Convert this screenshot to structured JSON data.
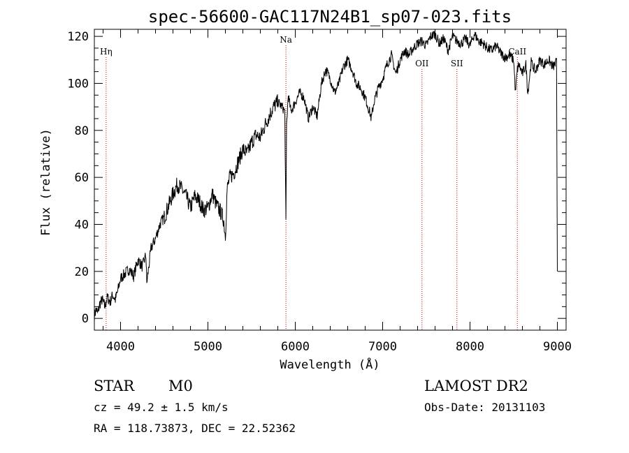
{
  "chart_data": {
    "type": "line",
    "title": "spec-56600-GAC117N24B1_sp07-023.fits",
    "xlabel": "Wavelength (Å)",
    "ylabel": "Flux (relative)",
    "xlim": [
      3700,
      9100
    ],
    "ylim": [
      -5,
      123
    ],
    "xticks": [
      4000,
      5000,
      6000,
      7000,
      8000,
      9000
    ],
    "yticks": [
      0,
      20,
      40,
      60,
      80,
      100,
      120
    ],
    "grid": false,
    "line_color": "#000000",
    "marker_color": "#c00000",
    "series": [
      {
        "x": [
          3700,
          3720,
          3740,
          3760,
          3790,
          3820,
          3850,
          3880,
          3910,
          3940,
          3970,
          4000,
          4050,
          4100,
          4150,
          4200,
          4250,
          4290,
          4300,
          4350,
          4400,
          4450,
          4500,
          4550,
          4600,
          4650,
          4700,
          4750,
          4800,
          4850,
          4900,
          4950,
          5000,
          5050,
          5100,
          5150,
          5180,
          5200,
          5220,
          5250,
          5300,
          5350,
          5400,
          5450,
          5500,
          5550,
          5600,
          5650,
          5700,
          5750,
          5800,
          5850,
          5880,
          5893,
          5900,
          5920,
          5950,
          6000,
          6050,
          6100,
          6150,
          6200,
          6250,
          6300,
          6350,
          6400,
          6450,
          6500,
          6550,
          6600,
          6650,
          6700,
          6750,
          6800,
          6850,
          6870,
          6900,
          6950,
          7000,
          7050,
          7100,
          7150,
          7200,
          7250,
          7300,
          7350,
          7400,
          7450,
          7500,
          7550,
          7600,
          7650,
          7700,
          7750,
          7800,
          7850,
          7900,
          7950,
          8000,
          8050,
          8100,
          8150,
          8200,
          8250,
          8300,
          8350,
          8400,
          8450,
          8500,
          8520,
          8542,
          8560,
          8600,
          8640,
          8662,
          8700,
          8750,
          8800,
          8850,
          8900,
          8950,
          8990,
          9000
        ],
        "y": [
          1,
          4,
          2,
          6,
          8,
          5,
          9,
          7,
          10,
          8,
          12,
          17,
          19,
          21,
          18,
          25,
          22,
          27,
          15,
          30,
          34,
          40,
          43,
          48,
          53,
          57,
          55,
          52,
          47,
          52,
          50,
          46,
          47,
          53,
          48,
          45,
          42,
          35,
          55,
          60,
          62,
          67,
          72,
          70,
          75,
          78,
          77,
          82,
          86,
          90,
          92,
          90,
          88,
          40,
          82,
          95,
          88,
          92,
          96,
          94,
          85,
          90,
          86,
          100,
          106,
          102,
          96,
          100,
          107,
          110,
          106,
          100,
          98,
          94,
          88,
          85,
          92,
          98,
          102,
          108,
          112,
          104,
          110,
          114,
          112,
          115,
          117,
          118,
          116,
          120,
          121,
          117,
          119,
          114,
          120,
          118,
          117,
          119,
          116,
          121,
          118,
          117,
          115,
          114,
          116,
          113,
          111,
          112,
          110,
          96,
          106,
          108,
          104,
          108,
          96,
          109,
          105,
          110,
          108,
          110,
          107,
          109,
          20
        ]
      }
    ],
    "markers": [
      {
        "label": "Hη",
        "x": 3835
      },
      {
        "label": "Na",
        "x": 5893
      },
      {
        "label": "OII",
        "x": 7450
      },
      {
        "label": "SII",
        "x": 7850
      },
      {
        "label": "CaII",
        "x": 8542
      }
    ]
  },
  "info": {
    "object_class": "STAR",
    "subclass": "M0",
    "survey": "LAMOST DR2",
    "redshift": "cz = 49.2 ± 1.5 km/s",
    "obs_date": "Obs-Date: 20131103",
    "coordinates": "RA = 118.73873, DEC =  22.52362"
  }
}
